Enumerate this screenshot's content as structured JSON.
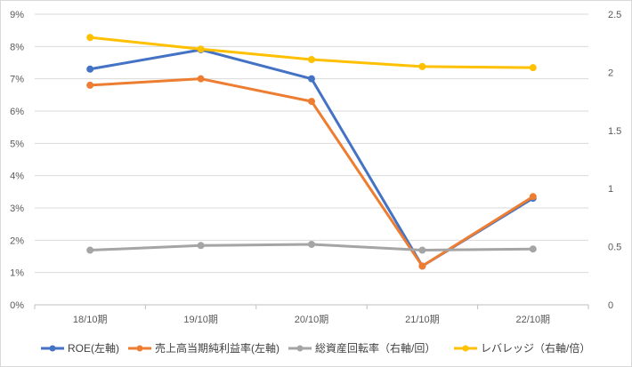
{
  "chart_data": {
    "type": "line",
    "categories": [
      "18/10期",
      "19/10期",
      "20/10期",
      "21/10期",
      "22/10期"
    ],
    "axes": {
      "left": {
        "ylim": [
          0,
          9
        ],
        "ticks": [
          "0%",
          "1%",
          "2%",
          "3%",
          "4%",
          "5%",
          "6%",
          "7%",
          "8%",
          "9%"
        ],
        "tick_values": [
          0,
          1,
          2,
          3,
          4,
          5,
          6,
          7,
          8,
          9
        ]
      },
      "right": {
        "ylim": [
          0,
          2.5
        ],
        "ticks": [
          "0",
          "0.5",
          "1",
          "1.5",
          "2",
          "2.5"
        ],
        "tick_values": [
          0,
          0.5,
          1,
          1.5,
          2,
          2.5
        ]
      }
    },
    "grid": true,
    "legend_position": "bottom",
    "series": [
      {
        "name": "ROE(左軸)",
        "axis": "left",
        "color": "#4472C4",
        "values": [
          7.3,
          7.9,
          7.0,
          1.2,
          3.3
        ]
      },
      {
        "name": "売上高当期純利益率(左軸)",
        "axis": "left",
        "color": "#ED7D31",
        "values": [
          6.8,
          7.0,
          6.3,
          1.2,
          3.35
        ]
      },
      {
        "name": "総資産回転率（右軸/回）",
        "axis": "right",
        "color": "#A5A5A5",
        "values": [
          0.47,
          0.51,
          0.52,
          0.47,
          0.48
        ]
      },
      {
        "name": "レバレッジ（右軸/倍）",
        "axis": "right",
        "color": "#FFC000",
        "values": [
          2.3,
          2.2,
          2.11,
          2.05,
          2.04
        ]
      }
    ]
  }
}
